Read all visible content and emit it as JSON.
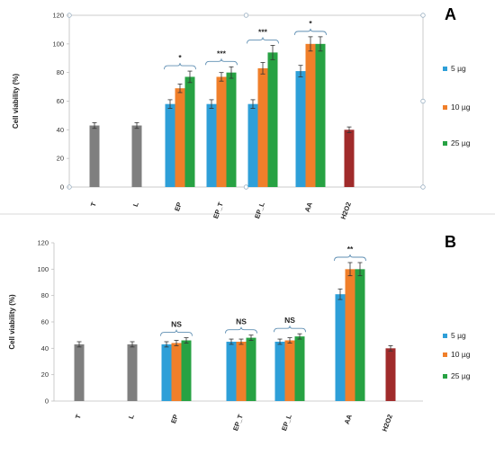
{
  "chart_data": [
    {
      "type": "bar",
      "panel_label": "A",
      "title": "",
      "xlabel": "",
      "ylabel": "Cell viability (%)",
      "ylim": [
        0,
        120
      ],
      "yticks": [
        0,
        20,
        40,
        60,
        80,
        100,
        120
      ],
      "categories": [
        "T",
        "L",
        "EP",
        "EP_T",
        "EP_L",
        "AA",
        "H2O2"
      ],
      "single_bars": [
        {
          "category": "T",
          "value": 43,
          "error": 2,
          "color": "#7f7f7f"
        },
        {
          "category": "L",
          "value": 43,
          "error": 2,
          "color": "#7f7f7f"
        },
        {
          "category": "H2O2",
          "value": 40,
          "error": 2,
          "color": "#a02b2b"
        }
      ],
      "series": [
        {
          "name": "5 µg",
          "color": "#2e9fd8",
          "values": [
            null,
            null,
            58,
            58,
            58,
            81,
            null
          ],
          "errors": [
            null,
            null,
            3,
            3,
            3,
            4,
            null
          ]
        },
        {
          "name": "10 µg",
          "color": "#f07f2a",
          "values": [
            null,
            null,
            69,
            77,
            83,
            100,
            null
          ],
          "errors": [
            null,
            null,
            3,
            3,
            4,
            5,
            null
          ]
        },
        {
          "name": "25 µg",
          "color": "#27a243",
          "values": [
            null,
            null,
            77,
            80,
            94,
            100,
            null
          ],
          "errors": [
            null,
            null,
            4,
            4,
            5,
            5,
            null
          ]
        }
      ],
      "significance": [
        {
          "category": "EP",
          "label": "*"
        },
        {
          "category": "EP_T",
          "label": "***"
        },
        {
          "category": "EP_L",
          "label": "***"
        },
        {
          "category": "AA",
          "label": "*"
        }
      ],
      "legend": [
        "5 µg",
        "10 µg",
        "25 µg"
      ],
      "legend_position": "right",
      "grid": false
    },
    {
      "type": "bar",
      "panel_label": "B",
      "title": "",
      "xlabel": "",
      "ylabel": "Cell viability (%)",
      "ylim": [
        0,
        120
      ],
      "yticks": [
        0,
        20,
        40,
        60,
        80,
        100,
        120
      ],
      "categories": [
        "T",
        "L",
        "EP",
        "EP_T",
        "EP_L",
        "AA",
        "H2O2"
      ],
      "single_bars": [
        {
          "category": "T",
          "value": 43,
          "error": 2,
          "color": "#7f7f7f"
        },
        {
          "category": "L",
          "value": 43,
          "error": 2,
          "color": "#7f7f7f"
        },
        {
          "category": "H2O2",
          "value": 40,
          "error": 2,
          "color": "#a02b2b"
        }
      ],
      "series": [
        {
          "name": "5 µg",
          "color": "#2e9fd8",
          "values": [
            null,
            null,
            43,
            45,
            45,
            81,
            null
          ],
          "errors": [
            null,
            null,
            2,
            2,
            2,
            4,
            null
          ]
        },
        {
          "name": "10 µg",
          "color": "#f07f2a",
          "values": [
            null,
            null,
            44,
            45,
            46,
            100,
            null
          ],
          "errors": [
            null,
            null,
            2,
            2,
            2,
            5,
            null
          ]
        },
        {
          "name": "25 µg",
          "color": "#27a243",
          "values": [
            null,
            null,
            46,
            48,
            49,
            100,
            null
          ],
          "errors": [
            null,
            null,
            2,
            2,
            2,
            5,
            null
          ]
        }
      ],
      "significance": [
        {
          "category": "EP",
          "label": "NS"
        },
        {
          "category": "EP_T",
          "label": "NS"
        },
        {
          "category": "EP_L",
          "label": "NS"
        },
        {
          "category": "AA",
          "label": "**"
        }
      ],
      "legend": [
        "5 µg",
        "10 µg",
        "25 µg"
      ],
      "legend_position": "right",
      "grid": false
    }
  ]
}
